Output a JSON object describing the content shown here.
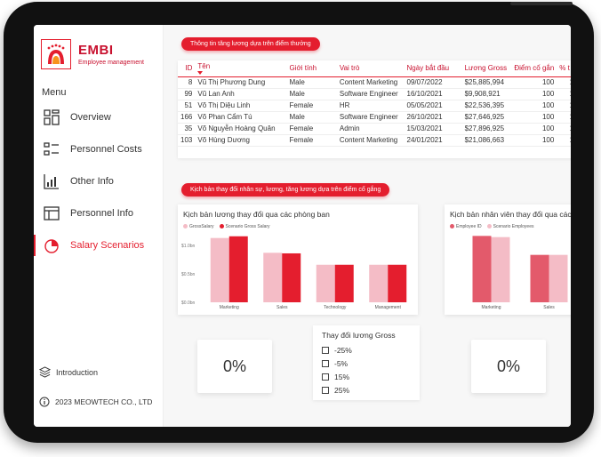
{
  "sidebar": {
    "brand": "EMBI",
    "brand_sub": "Employee management",
    "menu_label": "Menu",
    "items": [
      {
        "label": "Overview",
        "icon": "grid-icon"
      },
      {
        "label": "Personnel Costs",
        "icon": "list-icon"
      },
      {
        "label": "Other Info",
        "icon": "bar-chart-icon"
      },
      {
        "label": "Personnel Info",
        "icon": "table-icon"
      },
      {
        "label": "Salary Scenarios",
        "icon": "pie-chart-icon",
        "active": true
      }
    ],
    "introduction": "Introduction",
    "copyright": "2023 MEOWTECH CO., LTD"
  },
  "section1": {
    "title": "Thông tin tăng lương dựa trên điểm thưởng"
  },
  "table": {
    "columns": [
      "ID",
      "Tên",
      "Giới tính",
      "Vai trò",
      "Ngày bắt đầu",
      "Lương Gross",
      "Điểm cố gắn",
      "% t"
    ],
    "rows": [
      [
        "8",
        "Vũ Thị Phương Dung",
        "Male",
        "Content Marketing",
        "09/07/2022",
        "$25,885,994",
        "100",
        "1"
      ],
      [
        "99",
        "Vũ Lan Anh",
        "Male",
        "Software Engineer",
        "16/10/2021",
        "$9,908,921",
        "100",
        "1"
      ],
      [
        "51",
        "Võ Thị Diệu Linh",
        "Female",
        "HR",
        "05/05/2021",
        "$22,536,395",
        "100",
        "1"
      ],
      [
        "166",
        "Võ Phan Cẩm Tú",
        "Male",
        "Software Engineer",
        "26/10/2021",
        "$27,646,925",
        "100",
        "1"
      ],
      [
        "35",
        "Võ Nguyễn Hoàng Quân",
        "Female",
        "Admin",
        "15/03/2021",
        "$27,896,925",
        "100",
        "1"
      ],
      [
        "103",
        "Võ Hùng Dương",
        "Female",
        "Content Marketing",
        "24/01/2021",
        "$21,086,663",
        "100",
        "1"
      ]
    ]
  },
  "section2": {
    "title": "Kịch bản thay đổi nhân sự, lương, tăng lương dựa trên điểm cố gắng"
  },
  "colors": {
    "accent": "#e41e2e",
    "light": "#f4bcc6",
    "mid": "#e35a6b"
  },
  "chart_data": [
    {
      "type": "bar",
      "title": "Kịch bản lương thay đổi qua các phòng ban",
      "categories": [
        "Marketing",
        "Sales",
        "Technology",
        "Management"
      ],
      "series": [
        {
          "name": "GrossSalary",
          "values": [
            1.13,
            0.87,
            0.66,
            0.66
          ]
        },
        {
          "name": "Scenario Gross Salary",
          "values": [
            1.16,
            0.86,
            0.66,
            0.66
          ]
        }
      ],
      "y_ticks": [
        "$0.0bn",
        "$0.5bn",
        "$1.0bn"
      ],
      "ylim": [
        0,
        1.25
      ]
    },
    {
      "type": "bar",
      "title": "Kịch bản nhân viên thay đổi qua các phò",
      "categories": [
        "Marketing",
        "Sales"
      ],
      "series": [
        {
          "name": "Employee ID",
          "values": [
            56,
            40
          ]
        },
        {
          "name": "Scenario Employees",
          "values": [
            55,
            40
          ]
        }
      ],
      "ylim": [
        0,
        60
      ]
    }
  ],
  "kpis": {
    "left": "0%",
    "right": "0%"
  },
  "slicer": {
    "title": "Thay đổi lương Gross",
    "options": [
      "-25%",
      "-5%",
      "15%",
      "25%"
    ]
  }
}
